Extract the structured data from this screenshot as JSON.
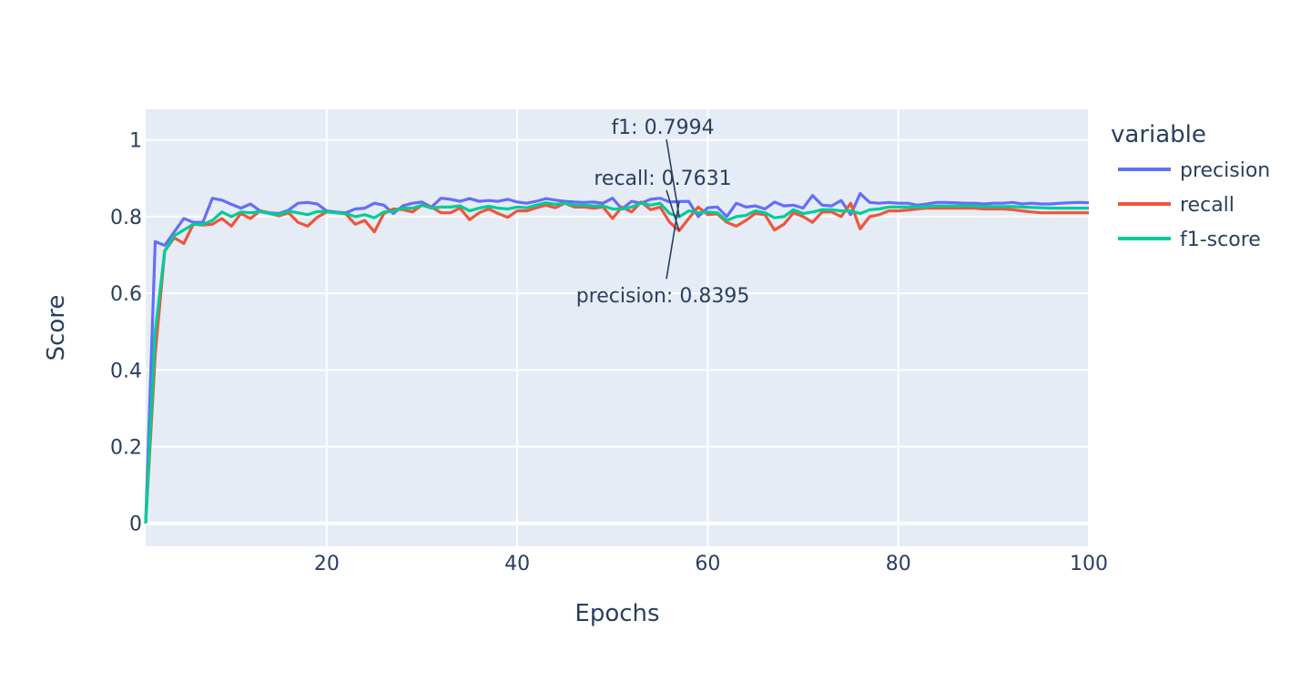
{
  "chart_data": {
    "type": "line",
    "xlabel": "Epochs",
    "ylabel": "Score",
    "xlim": [
      1,
      100
    ],
    "ylim": [
      -0.06,
      1.08
    ],
    "x_ticks": [
      20,
      40,
      60,
      80,
      100
    ],
    "x_tick_labels": [
      "20",
      "40",
      "60",
      "80",
      "100"
    ],
    "y_ticks": [
      0,
      0.2,
      0.4,
      0.6,
      0.8,
      1
    ],
    "y_tick_labels": [
      "0",
      "0.2",
      "0.4",
      "0.6",
      "0.8",
      "1"
    ],
    "grid": true,
    "background_color": "#e5ecf6",
    "legend": {
      "title": "variable",
      "placement": "right"
    },
    "series": [
      {
        "name": "precision",
        "color": "#636efa",
        "values": [
          0,
          0.735,
          0.725,
          0.76,
          0.795,
          0.785,
          0.785,
          0.848,
          0.843,
          0.832,
          0.822,
          0.833,
          0.815,
          0.81,
          0.808,
          0.817,
          0.835,
          0.837,
          0.833,
          0.815,
          0.812,
          0.81,
          0.82,
          0.822,
          0.835,
          0.83,
          0.808,
          0.828,
          0.835,
          0.838,
          0.825,
          0.848,
          0.845,
          0.84,
          0.847,
          0.84,
          0.842,
          0.84,
          0.845,
          0.838,
          0.835,
          0.84,
          0.847,
          0.843,
          0.84,
          0.838,
          0.837,
          0.838,
          0.835,
          0.848,
          0.82,
          0.84,
          0.835,
          0.845,
          0.848,
          0.838,
          0.8395,
          0.84,
          0.8,
          0.823,
          0.825,
          0.8,
          0.835,
          0.825,
          0.828,
          0.82,
          0.838,
          0.828,
          0.83,
          0.822,
          0.855,
          0.83,
          0.828,
          0.842,
          0.805,
          0.86,
          0.837,
          0.835,
          0.837,
          0.835,
          0.835,
          0.83,
          0.833,
          0.837,
          0.837,
          0.836,
          0.835,
          0.835,
          0.833,
          0.835,
          0.835,
          0.837,
          0.833,
          0.835,
          0.833,
          0.833,
          0.835,
          0.836,
          0.837,
          0.836
        ]
      },
      {
        "name": "recall",
        "color": "#ef553b",
        "values": [
          0,
          0.44,
          0.71,
          0.745,
          0.73,
          0.78,
          0.778,
          0.78,
          0.795,
          0.775,
          0.808,
          0.795,
          0.815,
          0.808,
          0.802,
          0.81,
          0.785,
          0.775,
          0.798,
          0.812,
          0.81,
          0.807,
          0.78,
          0.79,
          0.76,
          0.808,
          0.82,
          0.818,
          0.812,
          0.83,
          0.825,
          0.81,
          0.81,
          0.822,
          0.792,
          0.81,
          0.82,
          0.808,
          0.798,
          0.815,
          0.815,
          0.823,
          0.83,
          0.823,
          0.835,
          0.825,
          0.825,
          0.822,
          0.825,
          0.795,
          0.825,
          0.812,
          0.838,
          0.818,
          0.825,
          0.785,
          0.7631,
          0.795,
          0.825,
          0.805,
          0.807,
          0.785,
          0.775,
          0.79,
          0.808,
          0.805,
          0.765,
          0.78,
          0.81,
          0.8,
          0.785,
          0.812,
          0.812,
          0.8,
          0.835,
          0.768,
          0.8,
          0.805,
          0.815,
          0.815,
          0.817,
          0.82,
          0.822,
          0.822,
          0.822,
          0.822,
          0.822,
          0.822,
          0.82,
          0.82,
          0.82,
          0.818,
          0.815,
          0.812,
          0.81,
          0.81,
          0.81,
          0.81,
          0.81,
          0.81
        ]
      },
      {
        "name": "f1-score",
        "color": "#00cc96",
        "values": [
          0,
          0.5,
          0.71,
          0.75,
          0.765,
          0.78,
          0.78,
          0.79,
          0.812,
          0.8,
          0.812,
          0.81,
          0.813,
          0.808,
          0.805,
          0.814,
          0.81,
          0.805,
          0.813,
          0.813,
          0.81,
          0.808,
          0.8,
          0.805,
          0.797,
          0.812,
          0.814,
          0.822,
          0.822,
          0.83,
          0.822,
          0.825,
          0.825,
          0.828,
          0.815,
          0.822,
          0.827,
          0.822,
          0.82,
          0.825,
          0.823,
          0.83,
          0.836,
          0.832,
          0.835,
          0.83,
          0.83,
          0.828,
          0.828,
          0.82,
          0.82,
          0.825,
          0.835,
          0.83,
          0.835,
          0.808,
          0.7994,
          0.815,
          0.81,
          0.812,
          0.81,
          0.79,
          0.8,
          0.803,
          0.815,
          0.81,
          0.797,
          0.8,
          0.818,
          0.808,
          0.812,
          0.818,
          0.818,
          0.815,
          0.815,
          0.808,
          0.818,
          0.82,
          0.825,
          0.825,
          0.825,
          0.825,
          0.826,
          0.828,
          0.828,
          0.828,
          0.828,
          0.828,
          0.826,
          0.826,
          0.826,
          0.826,
          0.825,
          0.824,
          0.823,
          0.822,
          0.822,
          0.822,
          0.822,
          0.822
        ]
      }
    ],
    "annotations": [
      {
        "x": 57,
        "y": 0.7994,
        "text": "f1: 0.7994",
        "text_y": 1.035
      },
      {
        "x": 57,
        "y": 0.7631,
        "text": "recall: 0.7631",
        "text_y": 0.902
      },
      {
        "x": 57,
        "y": 0.8395,
        "text": "precision: 0.8395",
        "text_y": 0.595
      }
    ]
  }
}
